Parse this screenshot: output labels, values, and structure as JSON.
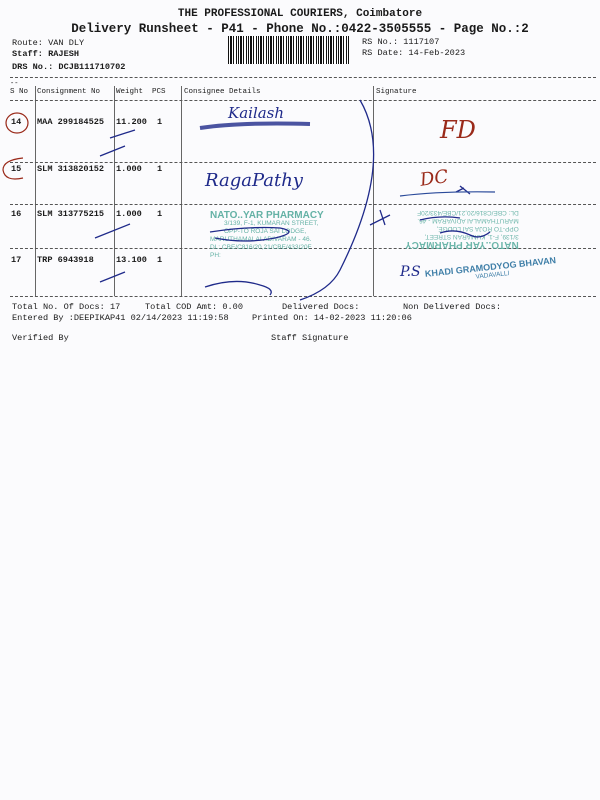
{
  "header": {
    "company": "THE PROFESSIONAL COURIERS, Coimbatore",
    "subtitle": "Delivery Runsheet - P41 - Phone No.:0422-3505555 - Page No.:2",
    "route": "Route: VAN DLY",
    "staff": "Staff: RAJESH",
    "drs_no": "DRS No.: DCJB111710702",
    "rs_no": "RS No.: 1117107",
    "rs_date": "RS Date: 14-Feb-2023",
    "dash_mark": "--"
  },
  "table": {
    "columns": [
      "S No",
      "Consignment No",
      "Weight",
      "PCS",
      "Consignee Details",
      "Signature"
    ],
    "rows": [
      {
        "sno": "14",
        "consignment": "MAA 299184525",
        "weight": "11.200",
        "pcs": "1",
        "consignee_hand": "Kailash",
        "signature_hand": "FD"
      },
      {
        "sno": "15",
        "consignment": "SLM 313820152",
        "weight": "1.000",
        "pcs": "1",
        "consignee_hand": "RagaPathy",
        "signature_hand": "DC"
      },
      {
        "sno": "16",
        "consignment": "SLM 313775215",
        "weight": "1.000",
        "pcs": "1",
        "consignee_hand": "",
        "signature_hand": ""
      },
      {
        "sno": "17",
        "consignment": "TRP 6943918",
        "weight": "13.100",
        "pcs": "1",
        "consignee_hand": "",
        "signature_hand": "P.S"
      }
    ]
  },
  "stamps": {
    "pharmacy_name": "NATO..YAR PHARMACY",
    "pharmacy_line1": "3/139, F-1, KUMARAN STREET,",
    "pharmacy_line2": "OPP-TO ROJA SAI LODGE,",
    "pharmacy_line3": "MARUTHAMALAI ADIVARAM - 46.",
    "pharmacy_line4": "DL: CBE/C816/20,21/CBE/433/20F",
    "pharmacy_line5": "PH:",
    "khadi_name": "KHADI GRAMODYOG BHAVAN",
    "khadi_place": "VADAVALLI"
  },
  "footer": {
    "total_docs": "Total No. Of Docs:  17",
    "total_cod": "Total COD Amt:    0.00",
    "delivered": "Delivered Docs:",
    "non_delivered": "Non Delivered Docs:",
    "entered_by": "Entered By :DEEPIKAP41 02/14/2023 11:19:58",
    "printed_on": "Printed On: 14-02-2023 11:20:06",
    "verified_by": "Verified By",
    "staff_signature": "Staff Signature"
  },
  "colors": {
    "ink_blue": "#1f2a8a",
    "ink_red": "#9a2a1a",
    "stamp_green": "#3f9a8a"
  }
}
